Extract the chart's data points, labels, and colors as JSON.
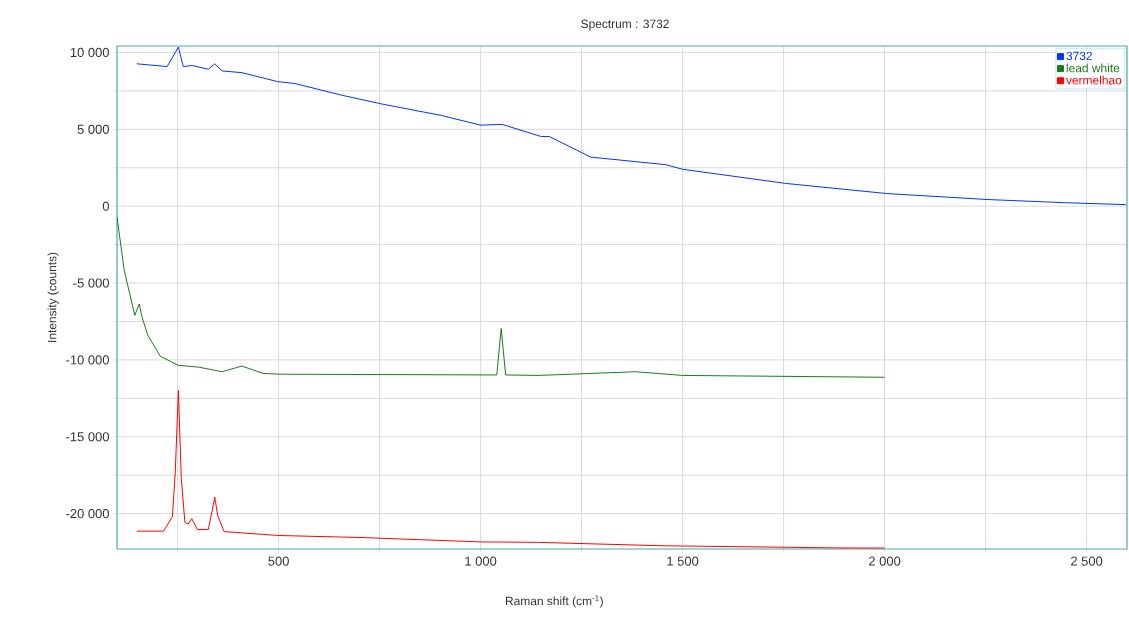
{
  "chart_data": {
    "type": "line",
    "title": "Spectrum : 3732",
    "xlabel": "Raman shift (cm$^{-1}$)",
    "ylabel": "Intensity (counts)",
    "xlim": [
      100,
      2600
    ],
    "ylim": [
      -22300,
      10420
    ],
    "xticks": [
      {
        "value": 250,
        "label": null
      },
      500,
      {
        "value": 750,
        "label": null
      },
      {
        "value": 1000,
        "label": "1 000"
      },
      {
        "value": 1250,
        "label": null
      },
      {
        "value": 1500,
        "label": "1 500"
      },
      {
        "value": 1750,
        "label": null
      },
      {
        "value": 2000,
        "label": "2 000"
      },
      {
        "value": 2250,
        "label": null
      },
      {
        "value": 2500,
        "label": "2 500"
      }
    ],
    "yticks": [
      {
        "value": -20000,
        "label": "-20 000"
      },
      {
        "value": -17500,
        "label": null
      },
      {
        "value": -15000,
        "label": "-15 000"
      },
      {
        "value": -12500,
        "label": null
      },
      {
        "value": -10000,
        "label": "-10 000"
      },
      {
        "value": -7500,
        "label": null
      },
      {
        "value": -5000,
        "label": "-5 000"
      },
      {
        "value": -2500,
        "label": null
      },
      0,
      {
        "value": 2500,
        "label": null
      },
      {
        "value": 5000,
        "label": "5 000"
      },
      {
        "value": 7500,
        "label": null
      },
      {
        "value": 10000,
        "label": "10 000"
      }
    ],
    "grid": true,
    "legend": "top right",
    "marker": "none",
    "line_style": "solid",
    "series": [
      {
        "name": "3732",
        "color": "#0033ff",
        "x": [
          149,
          224,
          252,
          264,
          286,
          326,
          342,
          360,
          410,
          498,
          540,
          656,
          753,
          903,
          1000,
          1053,
          1150,
          1170,
          1273,
          1458,
          1500,
          1755,
          2005,
          2256,
          2442,
          2597
        ],
        "values": [
          9260,
          9080,
          10350,
          9080,
          9150,
          8910,
          9260,
          8800,
          8680,
          8100,
          7980,
          7220,
          6660,
          5900,
          5270,
          5320,
          4530,
          4530,
          3190,
          2700,
          2400,
          1480,
          820,
          430,
          230,
          100
        ]
      },
      {
        "name": "lead white",
        "color": "#1a7a1a",
        "x": [
          100,
          118,
          144,
          155,
          162,
          176,
          207,
          251,
          302,
          360,
          409,
          462,
          500,
          1040,
          1051,
          1062,
          1143,
          1384,
          1500,
          2000
        ],
        "values": [
          -720,
          -4200,
          -7100,
          -6360,
          -7220,
          -8380,
          -9760,
          -10350,
          -10470,
          -10770,
          -10400,
          -10880,
          -10930,
          -10980,
          -7960,
          -10980,
          -11010,
          -10770,
          -11010,
          -11130
        ]
      },
      {
        "name": "vermelhao",
        "color": "#ff0000",
        "x": [
          149,
          215,
          237,
          244,
          252,
          259,
          268,
          276,
          285,
          299,
          326,
          336,
          342,
          349,
          365,
          498,
          709,
          1000,
          1143,
          1449,
          1885,
          2000
        ],
        "values": [
          -21140,
          -21140,
          -20210,
          -17430,
          -11980,
          -17660,
          -20560,
          -20680,
          -20330,
          -21030,
          -21030,
          -19750,
          -18930,
          -20100,
          -21170,
          -21420,
          -21560,
          -21840,
          -21870,
          -22090,
          -22230,
          -22240
        ]
      }
    ]
  }
}
